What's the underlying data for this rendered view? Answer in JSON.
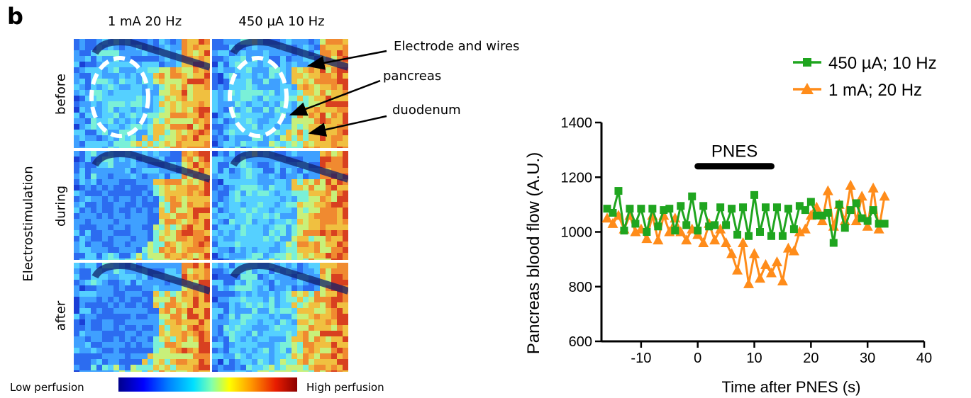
{
  "figure": {
    "panel_letter": "b",
    "columns": [
      "1 mA 20 Hz",
      "450 µA 10 Hz"
    ],
    "rows": [
      "before",
      "during",
      "after"
    ],
    "side_label": "Electrostimulation",
    "annotations": {
      "electrode": "Electrode  and wires",
      "pancreas": "pancreas",
      "duodenum": "duodenum"
    },
    "colorbar": {
      "low_label": "Low perfusion",
      "high_label": "High perfusion"
    },
    "colors": {
      "green": "#1fa51f",
      "orange": "#ff8c1a"
    }
  },
  "chart_data": {
    "type": "line",
    "xlabel": "Time after PNES (s)",
    "ylabel": "Pancreas blood flow (A.U.)",
    "xlim": [
      -17,
      40
    ],
    "ylim": [
      600,
      1400
    ],
    "xticks": [
      -10,
      0,
      10,
      20,
      30,
      40
    ],
    "yticks": [
      600,
      800,
      1000,
      1200,
      1400
    ],
    "legend_position": "top-right",
    "annotation": {
      "label": "PNES",
      "x_start": 0,
      "x_end": 13
    },
    "series": [
      {
        "name": "450 µA; 10 Hz",
        "marker": "square",
        "color": "#1fa51f",
        "x": [
          -16,
          -15,
          -14,
          -13,
          -12,
          -11,
          -10,
          -9,
          -8,
          -7,
          -6,
          -5,
          -4,
          -3,
          -2,
          -1,
          0,
          1,
          2,
          3,
          4,
          5,
          6,
          7,
          8,
          9,
          10,
          11,
          12,
          13,
          14,
          15,
          16,
          17,
          18,
          19,
          20,
          21,
          22,
          23,
          24,
          25,
          26,
          27,
          28,
          29,
          30,
          31,
          32,
          33
        ],
        "y": [
          1085,
          1070,
          1150,
          1005,
          1085,
          1030,
          1085,
          1000,
          1085,
          1020,
          1080,
          1085,
          1005,
          1095,
          1025,
          1130,
          1005,
          1095,
          1020,
          1025,
          1090,
          1025,
          1085,
          990,
          1090,
          985,
          1135,
          1000,
          1090,
          985,
          1090,
          985,
          1085,
          1010,
          1095,
          1080,
          1110,
          1060,
          1060,
          1070,
          960,
          1100,
          1015,
          1080,
          1105,
          1050,
          1040,
          1080,
          1030,
          1030
        ]
      },
      {
        "name": "1 mA; 20 Hz",
        "marker": "triangle",
        "color": "#ff8c1a",
        "x": [
          -16,
          -15,
          -14,
          -13,
          -12,
          -11,
          -10,
          -9,
          -8,
          -7,
          -6,
          -5,
          -4,
          -3,
          -2,
          -1,
          0,
          1,
          2,
          3,
          4,
          5,
          6,
          7,
          8,
          9,
          10,
          11,
          12,
          13,
          14,
          15,
          16,
          17,
          18,
          19,
          20,
          21,
          22,
          23,
          24,
          25,
          26,
          27,
          28,
          29,
          30,
          31,
          32,
          33
        ],
        "y": [
          1050,
          1030,
          1060,
          1010,
          1060,
          1000,
          1010,
          975,
          1060,
          970,
          1060,
          1000,
          1050,
          1000,
          970,
          1010,
          990,
          960,
          1030,
          970,
          1010,
          960,
          920,
          860,
          960,
          810,
          920,
          830,
          880,
          850,
          890,
          820,
          940,
          930,
          1000,
          1010,
          1060,
          1090,
          1040,
          1150,
          1020,
          1100,
          1040,
          1170,
          1040,
          1130,
          1020,
          1160,
          1010,
          1130
        ]
      }
    ]
  }
}
